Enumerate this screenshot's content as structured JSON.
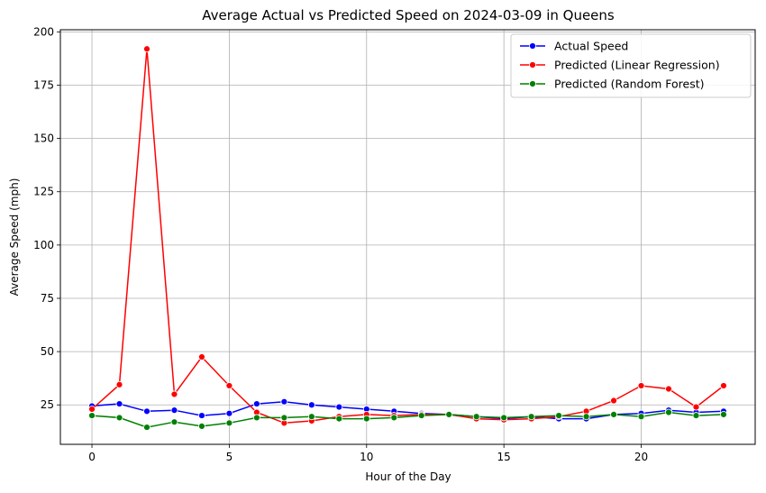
{
  "chart_data": {
    "type": "line",
    "title": "Average Actual vs Predicted Speed on 2024-03-09 in Queens",
    "xlabel": "Hour of the Day",
    "ylabel": "Average Speed (mph)",
    "xlim": [
      -1.15,
      24.15
    ],
    "ylim": [
      6.5,
      201
    ],
    "xticks": [
      0,
      5,
      10,
      15,
      20
    ],
    "yticks": [
      25,
      50,
      75,
      100,
      125,
      150,
      175,
      200
    ],
    "grid": true,
    "legend_position": "top-right",
    "x": [
      0,
      1,
      2,
      3,
      4,
      5,
      6,
      7,
      8,
      9,
      10,
      11,
      12,
      13,
      14,
      15,
      16,
      17,
      18,
      19,
      20,
      21,
      22,
      23
    ],
    "series": [
      {
        "name": "Actual Speed",
        "color": "#0000ff",
        "values": [
          24.5,
          25.5,
          22,
          22.5,
          20,
          21,
          25.5,
          26.5,
          25,
          24,
          23,
          22,
          21,
          20.5,
          19.5,
          18.5,
          19.5,
          18.5,
          18.5,
          20.5,
          21,
          22.5,
          21.5,
          22
        ]
      },
      {
        "name": "Predicted (Linear Regression)",
        "color": "#ff0000",
        "values": [
          23,
          34.5,
          192,
          30,
          47.5,
          34,
          21.5,
          16.5,
          17.5,
          19.5,
          20.5,
          20,
          20.5,
          20.5,
          18.5,
          18,
          18.5,
          19.5,
          22,
          27,
          34,
          32.5,
          24,
          34
        ]
      },
      {
        "name": "Predicted (Random Forest)",
        "color": "#008000",
        "values": [
          20,
          19,
          14.5,
          17,
          15,
          16.5,
          19,
          19,
          19.5,
          18.5,
          18.5,
          19,
          20,
          20.5,
          19.5,
          19,
          19.5,
          20,
          19.5,
          20.5,
          19.5,
          21.5,
          20,
          20.5
        ]
      }
    ]
  }
}
